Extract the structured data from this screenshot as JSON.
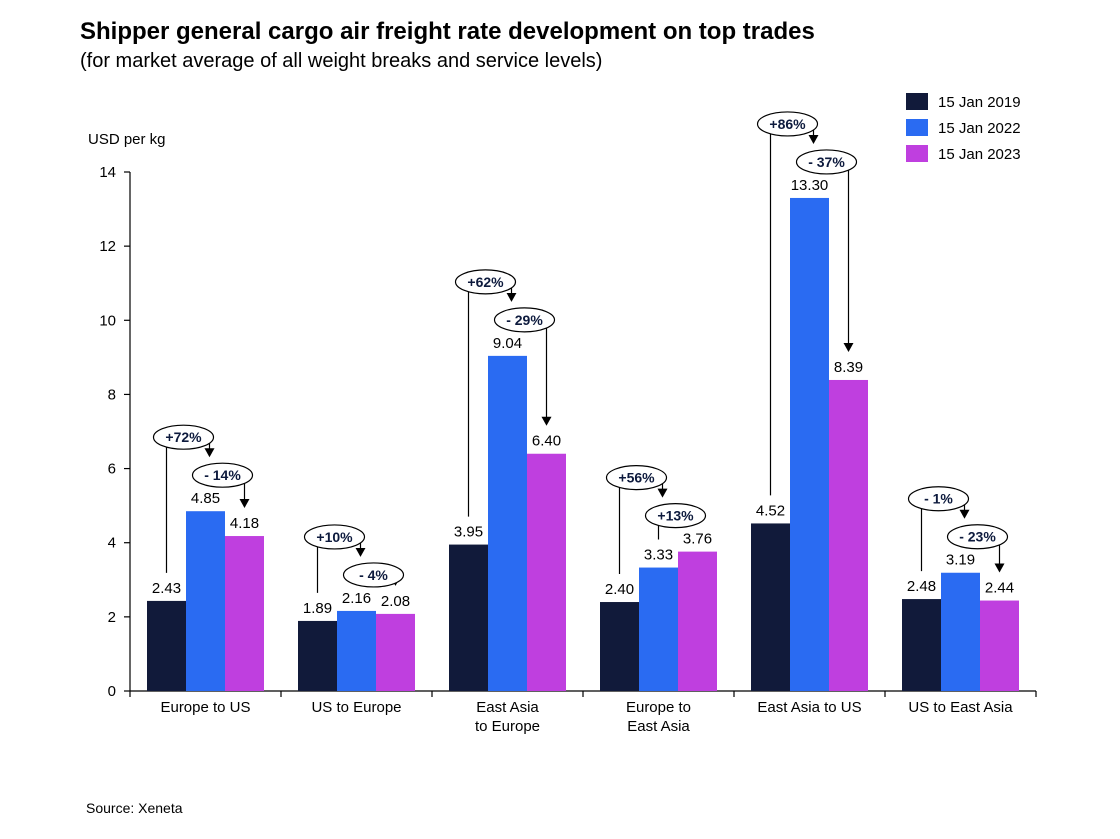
{
  "chart_data": {
    "type": "bar",
    "title": "Shipper general cargo air freight rate development on top trades",
    "subtitle": "(for market average of all weight breaks and service levels)",
    "ylabel": "USD per kg",
    "xlabel": "",
    "ylim": [
      0,
      14
    ],
    "yticks": [
      "0",
      "2",
      "4",
      "6",
      "8",
      "10",
      "12",
      "14"
    ],
    "categories": [
      [
        "Europe to US"
      ],
      [
        "US to Europe"
      ],
      [
        "East Asia",
        "to Europe"
      ],
      [
        "Europe to",
        "East Asia"
      ],
      [
        "East Asia to US"
      ],
      [
        "US to East Asia"
      ]
    ],
    "series": [
      {
        "name": "15 Jan 2019",
        "color": "#111a3a",
        "values": [
          2.43,
          1.89,
          3.95,
          2.4,
          4.52,
          2.48
        ],
        "labels": [
          "2.43",
          "1.89",
          "3.95",
          "2.40",
          "4.52",
          "2.48"
        ]
      },
      {
        "name": "15 Jan 2022",
        "color": "#2a6bf2",
        "values": [
          4.85,
          2.16,
          9.04,
          3.33,
          13.3,
          3.19
        ],
        "labels": [
          "4.85",
          "2.16",
          "9.04",
          "3.33",
          "13.30",
          "3.19"
        ]
      },
      {
        "name": "15 Jan 2023",
        "color": "#bf3fdf",
        "values": [
          4.18,
          2.08,
          6.4,
          3.76,
          8.39,
          2.44
        ],
        "labels": [
          "4.18",
          "2.08",
          "6.40",
          "3.76",
          "8.39",
          "2.44"
        ]
      }
    ],
    "annotations": {
      "change_2019_2022": [
        "+72%",
        "+10%",
        "+62%",
        "+56%",
        "+86%",
        "- 1%"
      ],
      "change_2022_2023": [
        "- 14%",
        "- 4%",
        "- 29%",
        "+13%",
        "- 37%",
        "- 23%"
      ]
    },
    "legend": "top-right",
    "grid": false
  },
  "footer": {
    "source": "Source: Xeneta"
  }
}
